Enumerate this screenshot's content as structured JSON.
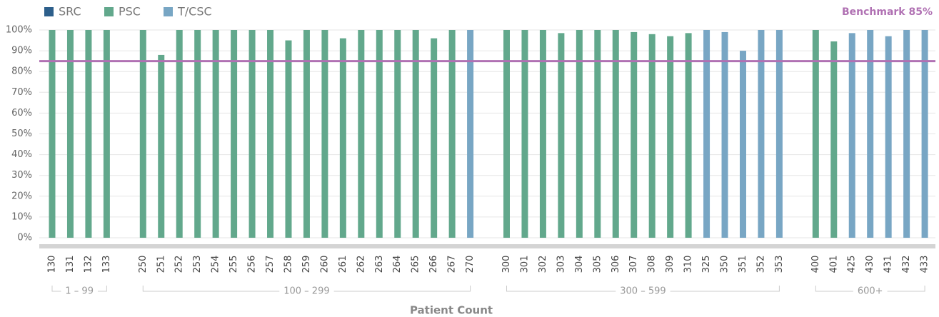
{
  "chart_data": {
    "type": "bar",
    "x_label": "Patient Count",
    "groups": [
      {
        "label": "1 – 99",
        "categories": [
          "130",
          "131",
          "132",
          "133"
        ]
      },
      {
        "label": "100 – 299",
        "categories": [
          "250",
          "251",
          "252",
          "253",
          "254",
          "255",
          "256",
          "257",
          "258",
          "259",
          "260",
          "261",
          "262",
          "263",
          "264",
          "265",
          "266",
          "267",
          "270"
        ]
      },
      {
        "label": "300 – 599",
        "categories": [
          "300",
          "301",
          "302",
          "303",
          "304",
          "305",
          "306",
          "307",
          "308",
          "309",
          "310",
          "325",
          "350",
          "351",
          "352",
          "353"
        ]
      },
      {
        "label": "600+",
        "categories": [
          "400",
          "401",
          "425",
          "430",
          "431",
          "432",
          "433"
        ]
      }
    ],
    "series": [
      {
        "name": "SRC",
        "color": "#2d5f8b",
        "values": [
          null,
          null,
          null,
          null,
          null,
          null,
          null,
          null,
          null,
          null,
          null,
          null,
          null,
          null,
          null,
          null,
          null,
          null,
          null,
          null,
          null,
          null,
          null,
          null,
          null,
          null,
          null,
          null,
          null,
          null,
          null,
          null,
          null,
          null,
          null,
          null,
          null,
          null,
          null,
          null,
          null,
          null,
          null,
          null,
          null,
          null
        ]
      },
      {
        "name": "PSC",
        "color": "#62a88c",
        "values": [
          100,
          100,
          100,
          100,
          100,
          88,
          100,
          100,
          100,
          100,
          100,
          100,
          95,
          100,
          100,
          96,
          100,
          100,
          100,
          100,
          96,
          100,
          null,
          100,
          100,
          100,
          98.5,
          100,
          100,
          100,
          99,
          98,
          97,
          98.5,
          null,
          null,
          null,
          null,
          null,
          100,
          94.5,
          null,
          null,
          null,
          null,
          null
        ]
      },
      {
        "name": "T/CSC",
        "color": "#78a6c4",
        "values": [
          null,
          null,
          null,
          null,
          null,
          null,
          null,
          null,
          null,
          null,
          null,
          null,
          null,
          null,
          null,
          null,
          null,
          null,
          null,
          null,
          null,
          null,
          100,
          null,
          null,
          null,
          null,
          null,
          null,
          null,
          null,
          null,
          null,
          null,
          100,
          99,
          90,
          100,
          100,
          null,
          null,
          98.5,
          100,
          97,
          100,
          100
        ]
      }
    ],
    "benchmark": {
      "label": "Benchmark 85%",
      "value": 85,
      "color": "#b071b3"
    },
    "ylim": [
      0,
      100
    ],
    "yticks": [
      {
        "value": 0,
        "label": "0%"
      },
      {
        "value": 10,
        "label": "10%"
      },
      {
        "value": 20,
        "label": "20%"
      },
      {
        "value": 30,
        "label": "30%"
      },
      {
        "value": 40,
        "label": "40%"
      },
      {
        "value": 50,
        "label": "50%"
      },
      {
        "value": 60,
        "label": "60%"
      },
      {
        "value": 70,
        "label": "70%"
      },
      {
        "value": 80,
        "label": "80%"
      },
      {
        "value": 90,
        "label": "90%"
      },
      {
        "value": 100,
        "label": "100%"
      }
    ],
    "grid": true
  }
}
